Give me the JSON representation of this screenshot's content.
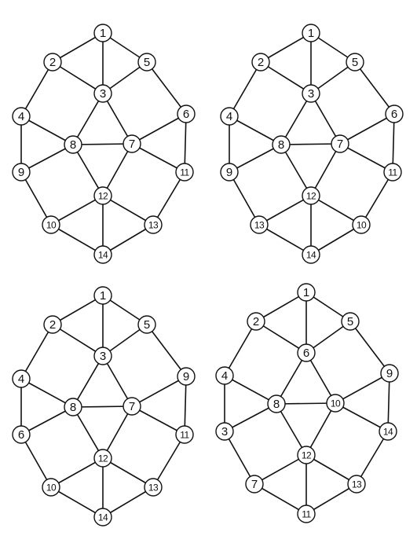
{
  "colors": {
    "background": "#ffffff",
    "ink": "#111111"
  },
  "graphs": [
    {
      "id": "top-left",
      "labels": [
        "1",
        "2",
        "5",
        "3",
        "4",
        "6",
        "8",
        "7",
        "9",
        "11",
        "12",
        "10",
        "13",
        "14"
      ]
    },
    {
      "id": "top-right",
      "labels": [
        "1",
        "2",
        "5",
        "3",
        "4",
        "6",
        "8",
        "7",
        "9",
        "11",
        "12",
        "13",
        "10",
        "14"
      ]
    },
    {
      "id": "bottom-left",
      "labels": [
        "1",
        "2",
        "5",
        "3",
        "4",
        "9",
        "8",
        "7",
        "6",
        "11",
        "12",
        "10",
        "13",
        "14"
      ]
    },
    {
      "id": "bottom-right",
      "labels": [
        "1",
        "2",
        "5",
        "6",
        "4",
        "9",
        "8",
        "10",
        "3",
        "14",
        "12",
        "7",
        "13",
        "11"
      ]
    }
  ]
}
